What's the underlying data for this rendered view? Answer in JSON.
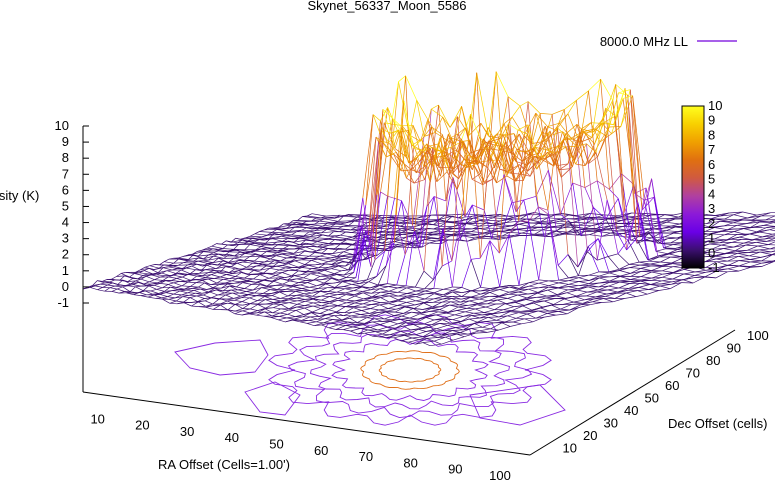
{
  "chart_data": {
    "type": "surface3d",
    "title": "Skynet_56337_Moon_5586",
    "legend": {
      "label": "8000.0 MHz LL",
      "position": "top-right"
    },
    "zlabel": "Intensity (K)",
    "xlabel": "RA Offset (Cells=1.00')",
    "ylabel": "Dec Offset (cells)",
    "x_ticks": [
      "10",
      "20",
      "30",
      "40",
      "50",
      "60",
      "70",
      "80",
      "90",
      "100"
    ],
    "y_ticks": [
      "10",
      "20",
      "30",
      "40",
      "50",
      "60",
      "70",
      "80",
      "90",
      "100"
    ],
    "z_ticks": [
      "-1",
      "0",
      "1",
      "2",
      "3",
      "4",
      "5",
      "6",
      "7",
      "8",
      "9",
      "10"
    ],
    "zlim": [
      -1,
      10
    ],
    "colorbar": {
      "ticks": [
        "-1",
        "0",
        "1",
        "2",
        "3",
        "4",
        "5",
        "6",
        "7",
        "8",
        "9",
        "10"
      ],
      "range": [
        -1,
        10
      ],
      "colors": [
        "#000000",
        "#3b0f70",
        "#6a00e6",
        "#8c1ad8",
        "#b040a0",
        "#d05a40",
        "#e07010",
        "#f0a000",
        "#f8d000",
        "#ffff20"
      ]
    },
    "surface": {
      "baseline_K": 0,
      "disk_center_K": 6.5,
      "limb_peak_K": 10
    },
    "mesh_color": "#8a2be2",
    "limb_color": "#e0701a"
  }
}
